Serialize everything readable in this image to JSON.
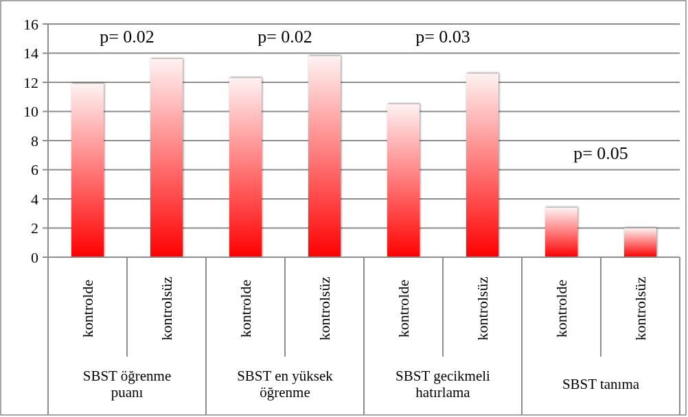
{
  "chart_data": {
    "type": "bar",
    "categories": [
      "kontrolde",
      "kontrolsüz",
      "kontrolde",
      "kontrolsüz",
      "kontrolde",
      "kontrolsüz",
      "kontrolde",
      "kontrolsüz"
    ],
    "values": [
      11.9,
      13.6,
      12.3,
      13.8,
      10.5,
      12.6,
      3.4,
      2.0
    ],
    "color": "#ff0000",
    "ylim": [
      0,
      16
    ],
    "yticks": [
      0,
      2,
      4,
      6,
      8,
      10,
      12,
      14,
      16
    ],
    "grid": "y",
    "annotations": [
      "p= 0.02",
      "p= 0.02",
      "p= 0.03",
      "p= 0.05",
      "SBST öğrenme puanı",
      "SBST en yüksek öğrenme",
      "SBST gecikmeli hatırlama",
      "SBST tanıma"
    ]
  }
}
